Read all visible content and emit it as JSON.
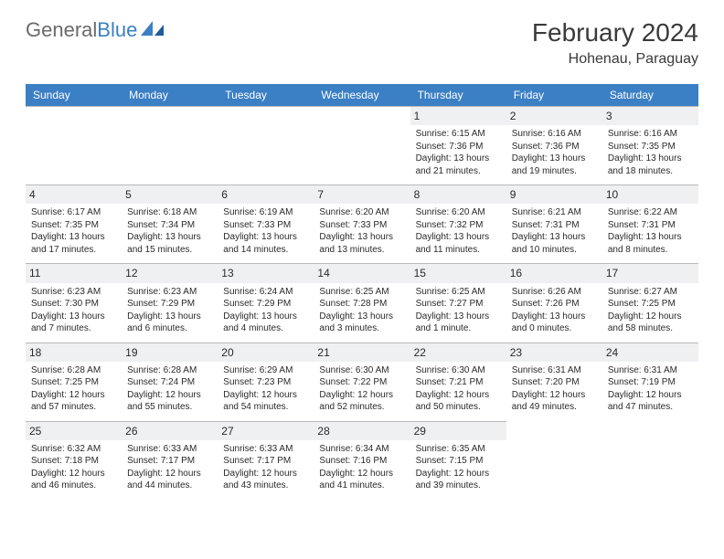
{
  "brand": {
    "name_gray": "General",
    "name_blue": "Blue"
  },
  "title": "February 2024",
  "location": "Hohenau, Paraguay",
  "colors": {
    "header_bar": "#3b7fc4",
    "daynum_bg": "#eef0f2",
    "border": "#b8b8b8",
    "text": "#2a2a2a",
    "logo_gray": "#6a6a6a"
  },
  "weekdays": [
    "Sunday",
    "Monday",
    "Tuesday",
    "Wednesday",
    "Thursday",
    "Friday",
    "Saturday"
  ],
  "lead_blank": 4,
  "days": [
    {
      "n": 1,
      "sr": "6:15 AM",
      "ss": "7:36 PM",
      "dl": "13 hours and 21 minutes."
    },
    {
      "n": 2,
      "sr": "6:16 AM",
      "ss": "7:36 PM",
      "dl": "13 hours and 19 minutes."
    },
    {
      "n": 3,
      "sr": "6:16 AM",
      "ss": "7:35 PM",
      "dl": "13 hours and 18 minutes."
    },
    {
      "n": 4,
      "sr": "6:17 AM",
      "ss": "7:35 PM",
      "dl": "13 hours and 17 minutes."
    },
    {
      "n": 5,
      "sr": "6:18 AM",
      "ss": "7:34 PM",
      "dl": "13 hours and 15 minutes."
    },
    {
      "n": 6,
      "sr": "6:19 AM",
      "ss": "7:33 PM",
      "dl": "13 hours and 14 minutes."
    },
    {
      "n": 7,
      "sr": "6:20 AM",
      "ss": "7:33 PM",
      "dl": "13 hours and 13 minutes."
    },
    {
      "n": 8,
      "sr": "6:20 AM",
      "ss": "7:32 PM",
      "dl": "13 hours and 11 minutes."
    },
    {
      "n": 9,
      "sr": "6:21 AM",
      "ss": "7:31 PM",
      "dl": "13 hours and 10 minutes."
    },
    {
      "n": 10,
      "sr": "6:22 AM",
      "ss": "7:31 PM",
      "dl": "13 hours and 8 minutes."
    },
    {
      "n": 11,
      "sr": "6:23 AM",
      "ss": "7:30 PM",
      "dl": "13 hours and 7 minutes."
    },
    {
      "n": 12,
      "sr": "6:23 AM",
      "ss": "7:29 PM",
      "dl": "13 hours and 6 minutes."
    },
    {
      "n": 13,
      "sr": "6:24 AM",
      "ss": "7:29 PM",
      "dl": "13 hours and 4 minutes."
    },
    {
      "n": 14,
      "sr": "6:25 AM",
      "ss": "7:28 PM",
      "dl": "13 hours and 3 minutes."
    },
    {
      "n": 15,
      "sr": "6:25 AM",
      "ss": "7:27 PM",
      "dl": "13 hours and 1 minute."
    },
    {
      "n": 16,
      "sr": "6:26 AM",
      "ss": "7:26 PM",
      "dl": "13 hours and 0 minutes."
    },
    {
      "n": 17,
      "sr": "6:27 AM",
      "ss": "7:25 PM",
      "dl": "12 hours and 58 minutes."
    },
    {
      "n": 18,
      "sr": "6:28 AM",
      "ss": "7:25 PM",
      "dl": "12 hours and 57 minutes."
    },
    {
      "n": 19,
      "sr": "6:28 AM",
      "ss": "7:24 PM",
      "dl": "12 hours and 55 minutes."
    },
    {
      "n": 20,
      "sr": "6:29 AM",
      "ss": "7:23 PM",
      "dl": "12 hours and 54 minutes."
    },
    {
      "n": 21,
      "sr": "6:30 AM",
      "ss": "7:22 PM",
      "dl": "12 hours and 52 minutes."
    },
    {
      "n": 22,
      "sr": "6:30 AM",
      "ss": "7:21 PM",
      "dl": "12 hours and 50 minutes."
    },
    {
      "n": 23,
      "sr": "6:31 AM",
      "ss": "7:20 PM",
      "dl": "12 hours and 49 minutes."
    },
    {
      "n": 24,
      "sr": "6:31 AM",
      "ss": "7:19 PM",
      "dl": "12 hours and 47 minutes."
    },
    {
      "n": 25,
      "sr": "6:32 AM",
      "ss": "7:18 PM",
      "dl": "12 hours and 46 minutes."
    },
    {
      "n": 26,
      "sr": "6:33 AM",
      "ss": "7:17 PM",
      "dl": "12 hours and 44 minutes."
    },
    {
      "n": 27,
      "sr": "6:33 AM",
      "ss": "7:17 PM",
      "dl": "12 hours and 43 minutes."
    },
    {
      "n": 28,
      "sr": "6:34 AM",
      "ss": "7:16 PM",
      "dl": "12 hours and 41 minutes."
    },
    {
      "n": 29,
      "sr": "6:35 AM",
      "ss": "7:15 PM",
      "dl": "12 hours and 39 minutes."
    }
  ],
  "labels": {
    "sunrise": "Sunrise:",
    "sunset": "Sunset:",
    "daylight": "Daylight:"
  }
}
